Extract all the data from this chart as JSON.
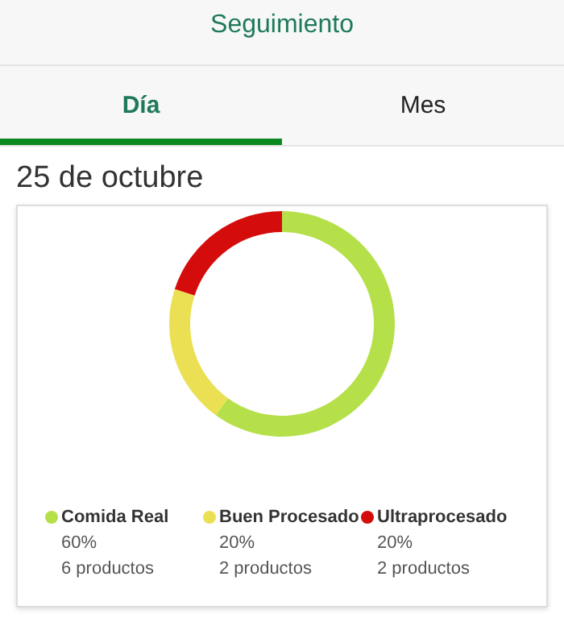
{
  "chart_data": {
    "type": "donut",
    "title": "Seguimiento",
    "subtitle": "25 de octubre",
    "categories": [
      "Comida Real",
      "Buen Procesado",
      "Ultraprocesado"
    ],
    "values": [
      60,
      20,
      20
    ],
    "colors": [
      "#b5e04a",
      "#ebe053",
      "#d50c0c"
    ],
    "value_labels": [
      "60%",
      "20%",
      "20%"
    ],
    "annotations": [
      "Día",
      "Mes",
      "6 productos",
      "2 productos",
      "2 productos"
    ],
    "legend": "bottom"
  }
}
